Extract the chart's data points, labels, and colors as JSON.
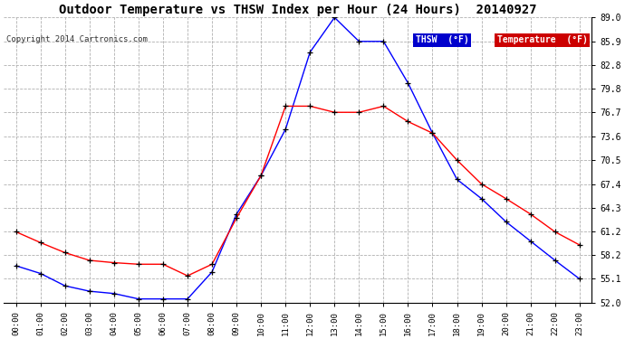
{
  "title": "Outdoor Temperature vs THSW Index per Hour (24 Hours)  20140927",
  "copyright": "Copyright 2014 Cartronics.com",
  "hours": [
    "00:00",
    "01:00",
    "02:00",
    "03:00",
    "04:00",
    "05:00",
    "06:00",
    "07:00",
    "08:00",
    "09:00",
    "10:00",
    "11:00",
    "12:00",
    "13:00",
    "14:00",
    "15:00",
    "16:00",
    "17:00",
    "18:00",
    "19:00",
    "20:00",
    "21:00",
    "22:00",
    "23:00"
  ],
  "thsw": [
    56.8,
    55.8,
    54.2,
    53.5,
    53.2,
    52.5,
    52.5,
    52.5,
    56.0,
    63.5,
    68.5,
    74.5,
    84.5,
    89.0,
    85.9,
    85.9,
    80.5,
    74.0,
    68.0,
    65.5,
    62.5,
    60.0,
    57.5,
    55.1
  ],
  "temp": [
    61.2,
    59.8,
    58.5,
    57.5,
    57.2,
    57.0,
    57.0,
    55.5,
    57.0,
    63.0,
    68.5,
    77.5,
    77.5,
    76.7,
    76.7,
    77.5,
    75.5,
    74.0,
    70.5,
    67.4,
    65.5,
    63.5,
    61.2,
    59.5
  ],
  "ylim": [
    52.0,
    89.0
  ],
  "yticks": [
    52.0,
    55.1,
    58.2,
    61.2,
    64.3,
    67.4,
    70.5,
    73.6,
    76.7,
    79.8,
    82.8,
    85.9,
    89.0
  ],
  "thsw_color": "#0000ff",
  "temp_color": "#ff0000",
  "marker_color": "#000000",
  "bg_color": "#ffffff",
  "grid_color": "#b0b0b0",
  "title_fontsize": 10,
  "legend_thsw_bg": "#0000cc",
  "legend_temp_bg": "#cc0000",
  "legend_text_color": "#ffffff"
}
